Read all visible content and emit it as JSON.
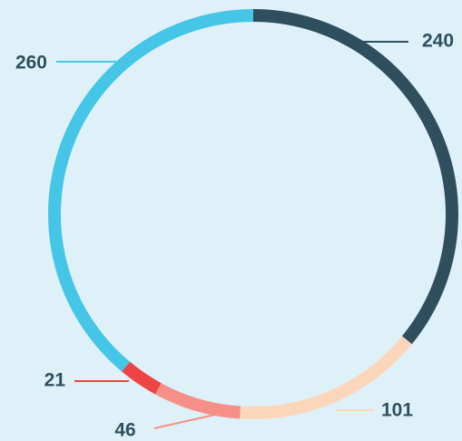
{
  "chart_data": {
    "type": "donut",
    "values": [
      240,
      101,
      46,
      21,
      260
    ],
    "colors": [
      "#2f4f5f",
      "#fcd6ba",
      "#f58f87",
      "#ee4444",
      "#45c6e6"
    ]
  }
}
